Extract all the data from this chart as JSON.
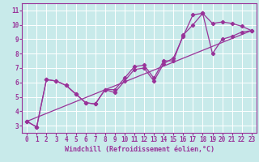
{
  "xlabel": "Windchill (Refroidissement éolien,°C)",
  "bg_color": "#c8eaea",
  "line_color": "#993399",
  "grid_color": "#ffffff",
  "xlim": [
    -0.5,
    23.5
  ],
  "ylim": [
    2.5,
    11.5
  ],
  "xticks": [
    0,
    1,
    2,
    3,
    4,
    5,
    6,
    7,
    8,
    9,
    10,
    11,
    12,
    13,
    14,
    15,
    16,
    17,
    18,
    19,
    20,
    21,
    22,
    23
  ],
  "yticks": [
    3,
    4,
    5,
    6,
    7,
    8,
    9,
    10,
    11
  ],
  "line1_x": [
    0,
    1,
    2,
    3,
    4,
    5,
    6,
    7,
    8,
    9,
    10,
    11,
    12,
    13,
    14,
    15,
    16,
    17,
    18,
    19,
    20,
    21,
    22,
    23
  ],
  "line1_y": [
    3.3,
    2.9,
    6.2,
    6.1,
    5.8,
    5.2,
    4.6,
    4.5,
    5.5,
    5.5,
    6.3,
    7.1,
    7.2,
    6.3,
    7.5,
    7.5,
    9.3,
    10.0,
    10.8,
    10.1,
    10.2,
    10.1,
    9.9,
    9.6
  ],
  "line2_x": [
    0,
    1,
    2,
    3,
    4,
    5,
    6,
    7,
    8,
    9,
    10,
    11,
    12,
    13,
    14,
    15,
    16,
    17,
    18,
    19,
    20,
    21,
    22,
    23
  ],
  "line2_y": [
    3.3,
    2.9,
    6.2,
    6.1,
    5.8,
    5.2,
    4.6,
    4.5,
    5.5,
    5.3,
    6.1,
    6.9,
    7.0,
    6.1,
    7.3,
    7.7,
    9.2,
    10.7,
    10.8,
    8.0,
    9.0,
    9.2,
    9.5,
    9.6
  ],
  "line3_x": [
    0,
    23
  ],
  "line3_y": [
    3.3,
    9.6
  ],
  "tick_fontsize": 5.5,
  "xlabel_fontsize": 6.0
}
